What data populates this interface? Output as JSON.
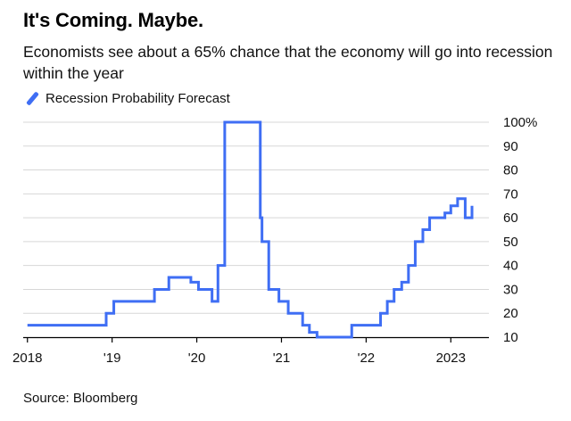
{
  "title": "It's Coming. Maybe.",
  "subtitle": "Economists see about a 65% chance that the economy will go into recession within the year",
  "source": "Source: Bloomberg",
  "colors": {
    "line": "#3f6ef4",
    "grid": "#d7d7d7",
    "axis": "#000000"
  },
  "chart_data": {
    "type": "line",
    "title": "It's Coming. Maybe.",
    "xlabel": "",
    "ylabel": "",
    "xlim": [
      2017.95,
      2023.45
    ],
    "ylim": [
      10,
      100
    ],
    "grid": true,
    "legend": "top-left",
    "x_ticks": [
      {
        "value": 2018,
        "label": "2018"
      },
      {
        "value": 2019,
        "label": "'19"
      },
      {
        "value": 2020,
        "label": "'20"
      },
      {
        "value": 2021,
        "label": "'21"
      },
      {
        "value": 2022,
        "label": "'22"
      },
      {
        "value": 2023,
        "label": "2023"
      }
    ],
    "y_ticks": [
      {
        "value": 100,
        "label": "100%"
      },
      {
        "value": 90,
        "label": "90"
      },
      {
        "value": 80,
        "label": "80"
      },
      {
        "value": 70,
        "label": "70"
      },
      {
        "value": 60,
        "label": "60"
      },
      {
        "value": 50,
        "label": "50"
      },
      {
        "value": 40,
        "label": "40"
      },
      {
        "value": 30,
        "label": "30"
      },
      {
        "value": 20,
        "label": "20"
      },
      {
        "value": 10,
        "label": "10"
      }
    ],
    "series": [
      {
        "name": "Recession Probability Forecast",
        "step": true,
        "x": [
          2018.0,
          2018.85,
          2018.93,
          2019.02,
          2019.5,
          2019.67,
          2019.93,
          2020.02,
          2020.18,
          2020.25,
          2020.33,
          2020.75,
          2020.77,
          2020.85,
          2020.97,
          2021.08,
          2021.25,
          2021.33,
          2021.42,
          2021.83,
          2022.17,
          2022.25,
          2022.33,
          2022.42,
          2022.5,
          2022.58,
          2022.67,
          2022.75,
          2022.93,
          2023.0,
          2023.08,
          2023.17,
          2023.25
        ],
        "values": [
          15,
          15,
          20,
          25,
          30,
          35,
          33,
          30,
          25,
          40,
          100,
          60,
          50,
          30,
          25,
          20,
          15,
          12,
          10,
          15,
          20,
          25,
          30,
          33,
          40,
          50,
          55,
          60,
          62,
          65,
          68,
          60,
          65
        ]
      }
    ]
  }
}
